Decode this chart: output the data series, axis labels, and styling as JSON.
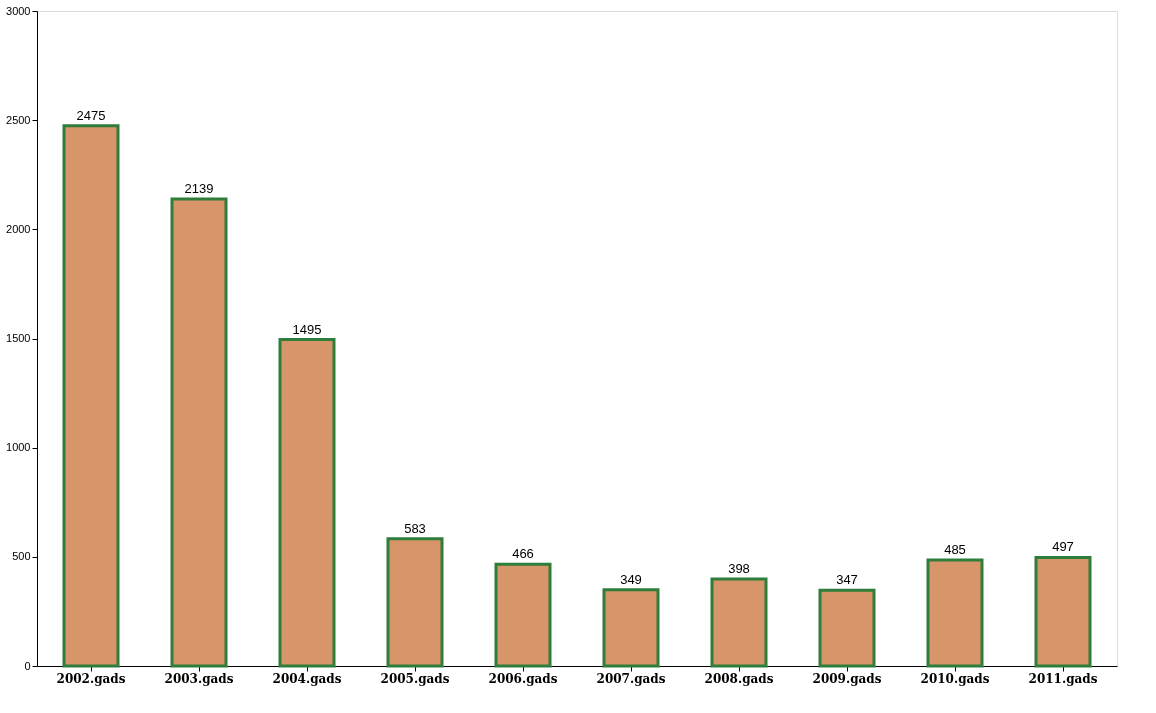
{
  "chart_data": {
    "type": "bar",
    "categories": [
      "2002.gads",
      "2003.gads",
      "2004.gads",
      "2005.gads",
      "2006.gads",
      "2007.gads",
      "2008.gads",
      "2009.gads",
      "2010.gads",
      "2011.gads"
    ],
    "values": [
      2475,
      2139,
      1495,
      583,
      466,
      349,
      398,
      347,
      485,
      497
    ],
    "color": "#d9956a",
    "ylim": [
      0,
      3000
    ],
    "yticks": [
      0,
      500,
      1000,
      1500,
      2000,
      2500,
      3000
    ],
    "grid": false,
    "data_labels": true
  }
}
